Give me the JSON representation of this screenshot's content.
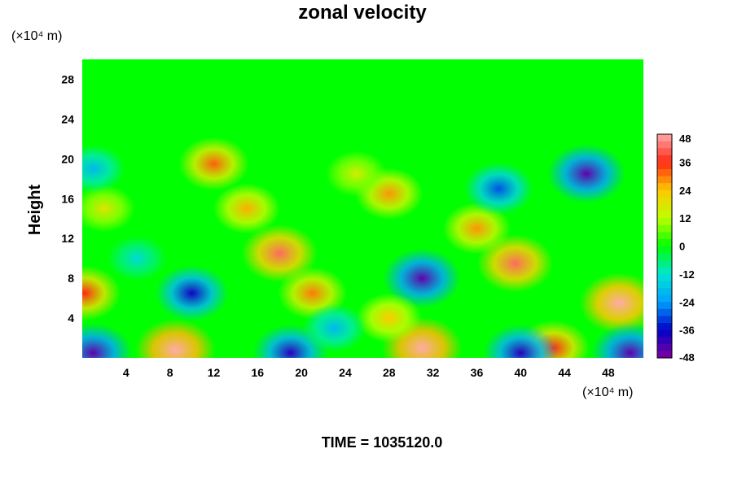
{
  "chart_data": {
    "type": "heatmap",
    "title": "zonal velocity",
    "xlabel": "",
    "ylabel": "Height",
    "x_unit": "(×10⁴ m)",
    "y_unit": "(×10⁴ m)",
    "xlim": [
      0,
      51.2
    ],
    "ylim": [
      0,
      30
    ],
    "x_ticks": [
      4,
      8,
      12,
      16,
      20,
      24,
      28,
      32,
      36,
      40,
      44,
      48
    ],
    "y_ticks": [
      4,
      8,
      12,
      16,
      20,
      24,
      28
    ],
    "colorbar": {
      "ticks": [
        48,
        36,
        24,
        12,
        0,
        -12,
        -24,
        -36,
        -48
      ],
      "range": [
        -48,
        48
      ]
    },
    "grid": false,
    "background_value": 0,
    "features": [
      {
        "x": 8.5,
        "y": 0.8,
        "value": 50
      },
      {
        "x": 10,
        "y": 6.5,
        "value": -38
      },
      {
        "x": 0.2,
        "y": 6.5,
        "value": 36
      },
      {
        "x": 18,
        "y": 10.5,
        "value": 42
      },
      {
        "x": 21,
        "y": 6.5,
        "value": 30
      },
      {
        "x": 15,
        "y": 15,
        "value": 26
      },
      {
        "x": 12,
        "y": 19.5,
        "value": 32
      },
      {
        "x": 28,
        "y": 16.5,
        "value": 28
      },
      {
        "x": 31,
        "y": 8,
        "value": -45
      },
      {
        "x": 31,
        "y": 1,
        "value": 50
      },
      {
        "x": 39.5,
        "y": 9.5,
        "value": 42
      },
      {
        "x": 36,
        "y": 13,
        "value": 28
      },
      {
        "x": 49,
        "y": 5.5,
        "value": 48
      },
      {
        "x": 46,
        "y": 18.5,
        "value": -45
      },
      {
        "x": 38,
        "y": 17,
        "value": -30
      },
      {
        "x": 5,
        "y": 10,
        "value": -14
      },
      {
        "x": 28,
        "y": 4,
        "value": 24
      },
      {
        "x": 2,
        "y": 15,
        "value": 18
      },
      {
        "x": 43,
        "y": 1,
        "value": 36
      },
      {
        "x": 40,
        "y": 0.5,
        "value": -40
      },
      {
        "x": 19,
        "y": 0.5,
        "value": -40
      },
      {
        "x": 1,
        "y": 0.5,
        "value": -45
      },
      {
        "x": 50,
        "y": 0.5,
        "value": -45
      },
      {
        "x": 23,
        "y": 3,
        "value": -20
      },
      {
        "x": 1,
        "y": 19,
        "value": -20
      },
      {
        "x": 25,
        "y": 18.5,
        "value": 16
      }
    ],
    "time_label": "TIME = 1035120.0"
  }
}
